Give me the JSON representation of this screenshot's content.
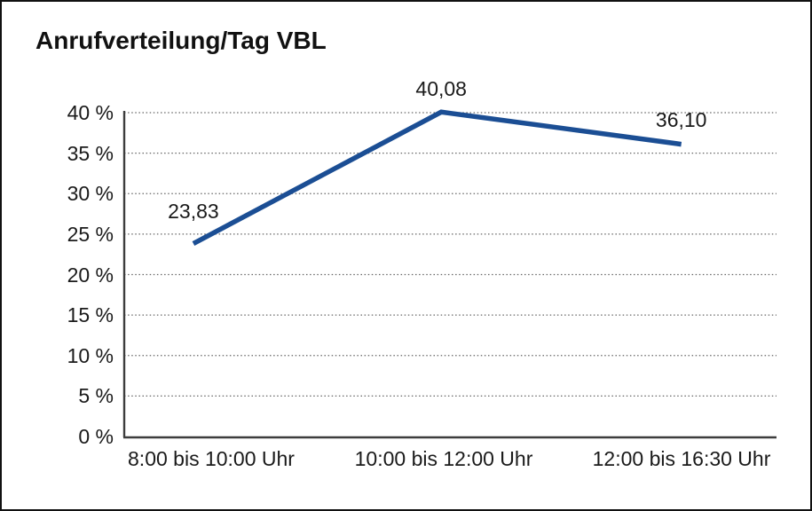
{
  "frame": {
    "background": "#ffffff",
    "border_color": "#111111"
  },
  "chart_data": {
    "type": "line",
    "title": "Anrufverteilung/Tag VBL",
    "categories": [
      "8:00 bis 10:00 Uhr",
      "10:00 bis 12:00 Uhr",
      "12:00 bis 16:30 Uhr"
    ],
    "values": [
      23.83,
      40.08,
      36.1
    ],
    "value_labels": [
      "23,83",
      "40,08",
      "36,10"
    ],
    "ylim": [
      0,
      40
    ],
    "ytick_step": 5,
    "ytick_labels": [
      "0 %",
      "5 %",
      "10 %",
      "15 %",
      "20 %",
      "25 %",
      "30 %",
      "35 %",
      "40 %"
    ],
    "xlabel": "",
    "ylabel": "",
    "grid": "horizontal-dotted",
    "legend_position": "none",
    "line_color": "#1b4e94",
    "grid_color": "#666666",
    "axis_color": "#3d3d3d",
    "text_color": "#1a1a1a"
  }
}
